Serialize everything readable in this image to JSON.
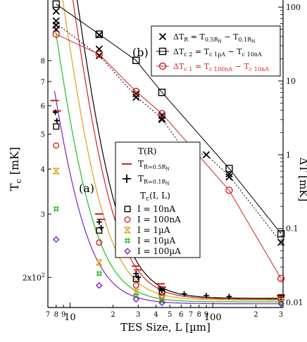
{
  "chart_data": [
    {
      "panel": "(a)",
      "type": "scatter",
      "x_scale": "log",
      "y_scale": "log",
      "xlim": [
        7,
        310
      ],
      "ylim": [
        165,
        880
      ],
      "xlabel": "TES Size,  L  [µm]",
      "ylabel": "T",
      "ylabel_sub": "c",
      "ylabel_unit": "[mK]",
      "x_ticks": [
        {
          "value": 7,
          "label": "7"
        },
        {
          "value": 8,
          "label": "8"
        },
        {
          "value": 9,
          "label": "9"
        },
        {
          "value": 10,
          "label": "10"
        },
        {
          "value": 20,
          "label": "2"
        },
        {
          "value": 30,
          "label": "3"
        },
        {
          "value": 40,
          "label": "4"
        },
        {
          "value": 50,
          "label": "5"
        },
        {
          "value": 60,
          "label": "6"
        },
        {
          "value": 70,
          "label": "7"
        },
        {
          "value": 80,
          "label": "8"
        },
        {
          "value": 90,
          "label": "9"
        },
        {
          "value": 100,
          "label": "100"
        },
        {
          "value": 200,
          "label": "2"
        },
        {
          "value": 300,
          "label": "3"
        }
      ],
      "y_ticks": [
        {
          "value": 200,
          "label": "2x10"
        },
        {
          "value": 300,
          "label": "3"
        },
        {
          "value": 400,
          "label": "4"
        },
        {
          "value": 500,
          "label": "5"
        },
        {
          "value": 600,
          "label": "6"
        },
        {
          "value": 700,
          "label": "7"
        },
        {
          "value": 800,
          "label": "8"
        }
      ],
      "panel_label": "(a)",
      "legend": {
        "title_tr": "T(R)",
        "title_tc": "T",
        "title_tc_sub": "c",
        "title_tc_args": "(I, L)",
        "tr_entries": [
          {
            "main": "T",
            "sub": "R=0.5R",
            "sub2": "N"
          },
          {
            "main": "T",
            "sub": "R=0.1R",
            "sub2": "N"
          }
        ],
        "tc_entries": [
          "I = 10nA",
          "I = 100nA",
          "I = 1µA",
          "I = 10µA",
          "I = 100µA"
        ]
      },
      "series": [
        {
          "name": "T_R=0.5RN",
          "marker": "dash",
          "color": "#cc2222",
          "x": [
            7.8,
            8.1,
            16,
            16.5,
            29,
            30,
            43,
            44,
            300
          ],
          "y": [
            620,
            580,
            300,
            290,
            215,
            210,
            192,
            188,
            178
          ]
        },
        {
          "name": "T_R=0.1RN",
          "marker": "plus",
          "color": "#000000",
          "x": [
            7.9,
            8.1,
            16,
            16.5,
            29,
            30,
            43,
            44,
            63,
            90,
            130,
            300
          ],
          "y": [
            575,
            545,
            285,
            275,
            205,
            200,
            186,
            184,
            180,
            178,
            177,
            176
          ]
        },
        {
          "name": "I = 10nA",
          "marker": "square",
          "color": "#000000",
          "x": [
            8,
            16,
            29,
            44,
            300
          ],
          "y": [
            525,
            270,
            198,
            182,
            176
          ],
          "fit": {
            "a": 175,
            "b": 2300000.0,
            "p": 3.2
          }
        },
        {
          "name": "I = 100nA",
          "marker": "circle",
          "color": "#d42020",
          "x": [
            8,
            16,
            29,
            44,
            300
          ],
          "y": [
            465,
            250,
            190,
            178,
            174
          ],
          "fit": {
            "a": 174,
            "b": 1850000.0,
            "p": 3.2
          }
        },
        {
          "name": "I = 1µA",
          "marker": "bowtie",
          "color": "#e0a020",
          "x": [
            8,
            16,
            29,
            44,
            300
          ],
          "y": [
            395,
            220,
            182,
            175,
            172
          ],
          "fit": {
            "a": 173,
            "b": 1100000.0,
            "p": 3.2
          }
        },
        {
          "name": "I = 10µA",
          "marker": "hash",
          "color": "#22bb22",
          "x": [
            8,
            16,
            29,
            44,
            300
          ],
          "y": [
            310,
            205,
            178,
            172,
            170
          ],
          "fit": {
            "a": 171,
            "b": 600000.0,
            "p": 3.2
          }
        },
        {
          "name": "I = 100µA",
          "marker": "diamond",
          "color": "#7a22cc",
          "x": [
            8,
            16,
            29,
            44,
            300
          ],
          "y": [
            255,
            190,
            174,
            170,
            169
          ],
          "fit": {
            "a": 169,
            "b": 350000.0,
            "p": 3.2
          }
        }
      ]
    },
    {
      "panel": "(b)",
      "type": "line",
      "x_scale": "log",
      "y_scale": "log",
      "xlim": [
        7,
        310
      ],
      "ylim": [
        0.0085,
        125
      ],
      "ylabel": "ΔT [mK]",
      "y_ticks": [
        {
          "value": 100,
          "label": "100"
        },
        {
          "value": 10,
          "label": "10"
        },
        {
          "value": 1,
          "label": "1"
        },
        {
          "value": 0.1,
          "label": "0.1"
        },
        {
          "value": 0.01,
          "label": "0.01"
        }
      ],
      "panel_label": "(b)",
      "legend": {
        "entries": [
          {
            "main": "ΔT",
            "sub": "R",
            "eq": " = T",
            "eq_sub": "0.5R",
            "eq_sub2": "N",
            "mid": " − T",
            "mid_sub": "0.1R",
            "mid_sub2": "N"
          },
          {
            "main": "ΔT",
            "sub": "c 2",
            "eq": " = T",
            "eq_sub": "c 1µA",
            "mid": " − T",
            "mid_sub": "c 10nA"
          },
          {
            "main": "ΔT",
            "sub": "c 1",
            "eq": " = T",
            "eq_sub": "c 100nA",
            "mid": " − T",
            "mid_sub": "c 10nA"
          }
        ]
      },
      "series": [
        {
          "name": "ΔT_R",
          "marker": "x",
          "color": "#000000",
          "line": "dotted",
          "points": [
            [
              8,
              88
            ],
            [
              8,
              65
            ],
            [
              8,
              57
            ],
            [
              8,
              50
            ],
            [
              16,
              42
            ],
            [
              16,
              27
            ],
            [
              16,
              22
            ],
            [
              29,
              6.7
            ],
            [
              29,
              6.0
            ],
            [
              44,
              3.4
            ],
            [
              44,
              3.1
            ],
            [
              44,
              3.0
            ],
            [
              64,
              1.15
            ],
            [
              64,
              1.1
            ],
            [
              90,
              1.0
            ],
            [
              130,
              0.55
            ],
            [
              130,
              0.5
            ],
            [
              300,
              0.065
            ]
          ],
          "line_x": [
            8,
            16,
            29,
            44,
            64,
            90,
            130,
            300
          ],
          "line_y": [
            60,
            22,
            6.2,
            3.1,
            1.1,
            1.0,
            0.52,
            0.065
          ]
        },
        {
          "name": "ΔT_c2",
          "marker": "square",
          "color": "#000000",
          "line": "solid",
          "x": [
            8,
            16,
            29,
            44,
            130,
            300
          ],
          "y": [
            110,
            43,
            19,
            7.0,
            0.65,
            0.085
          ]
        },
        {
          "name": "ΔT_c1",
          "marker": "circle",
          "color": "#d42020",
          "line": "solid",
          "x": [
            8,
            16,
            29,
            44,
            130,
            300
          ],
          "y": [
            43,
            23,
            7.2,
            3.6,
            0.33,
            0.021
          ]
        }
      ]
    }
  ]
}
